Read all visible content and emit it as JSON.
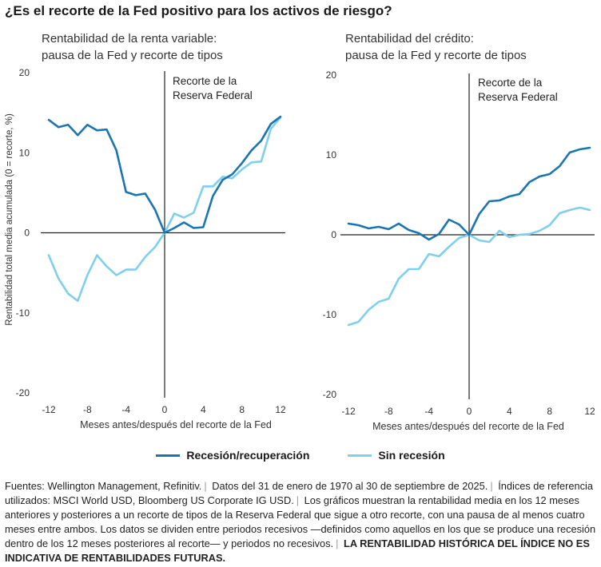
{
  "title": "¿Es el recorte de la Fed positivo para los activos de riesgo?",
  "y_axis_label": "Rentabilidad total media acumulada (0 = recorte, %)",
  "colors": {
    "recession": "#1b75b0",
    "no_recession": "#7fcfee",
    "axis": "#222222"
  },
  "legend": {
    "recession": "Recesión/recuperación",
    "no_recession": "Sin recesión"
  },
  "footnote": {
    "part1": "Fuentes: Wellington Management, Refinitiv.",
    "part2": "Datos del 31 de enero de 1970 al 30 de septiembre de 2025.",
    "part3": "Índices de referencia utilizados: MSCI World USD, Bloomberg US Corporate IG USD.",
    "part4": "Los gráficos muestran la rentabilidad media en los 12 meses anteriores y posteriores a un recorte de tipos de la Reserva Federal que sigue a otro recorte, con una pausa de al menos cuatro meses entre ambos. Los datos se dividen entre periodos recesivos —definidos como aquellos en los que se produce una recesión dentro de los 12 meses posteriores al recorte— y periodos no recesivos.",
    "disclaimer": "LA RENTABILIDAD HISTÓRICA DEL ÍNDICE NO ES INDICATIVA DE RENTABILIDADES FUTURAS."
  },
  "chart_data": [
    {
      "type": "line",
      "title": "Rentabilidad de la renta variable: pausa de la Fed y recorte de tipos",
      "subtitle_lines": [
        "Rentabilidad de la renta variable:",
        "pausa de la Fed y recorte de tipos"
      ],
      "xlabel": "Meses antes/después del recorte de la Fed",
      "ylabel": "Rentabilidad total media acumulada (0 = recorte, %)",
      "xlim": [
        -12,
        12
      ],
      "ylim": [
        -20,
        20
      ],
      "xticks": [
        -12,
        -8,
        -4,
        0,
        4,
        8,
        12
      ],
      "yticks": [
        20,
        10,
        0,
        -10,
        -20
      ],
      "annotation": [
        "Recorte de la",
        "Reserva Federal"
      ],
      "x": [
        -12,
        -11,
        -10,
        -9,
        -8,
        -7,
        -6,
        -5,
        -4,
        -3,
        -2,
        -1,
        0,
        1,
        2,
        3,
        4,
        5,
        6,
        7,
        8,
        9,
        10,
        11,
        12
      ],
      "series": [
        {
          "name": "Recesión/recuperación",
          "key": "recession",
          "values": [
            14.1,
            13.2,
            13.5,
            12.2,
            13.5,
            12.8,
            12.9,
            10.3,
            5.1,
            4.7,
            4.9,
            2.9,
            0,
            0.6,
            1.3,
            0.6,
            0.7,
            4.6,
            6.6,
            7.3,
            8.7,
            10.3,
            11.5,
            13.6,
            14.5
          ]
        },
        {
          "name": "Sin recesión",
          "key": "no_recession",
          "values": [
            -2.8,
            -5.7,
            -7.6,
            -8.5,
            -5.3,
            -2.8,
            -4.2,
            -5.3,
            -4.6,
            -4.6,
            -3.0,
            -1.8,
            0,
            2.4,
            1.9,
            2.5,
            5.8,
            5.8,
            7.0,
            6.8,
            7.9,
            8.8,
            8.9,
            13.0,
            14.4
          ]
        }
      ]
    },
    {
      "type": "line",
      "title": "Rentabilidad del crédito: pausa de la Fed y recorte de tipos",
      "subtitle_lines": [
        "Rentabilidad del crédito:",
        "pausa de la Fed y recorte de tipos"
      ],
      "xlabel": "Meses antes/después del recorte de la Fed",
      "ylabel": "",
      "xlim": [
        -12,
        12
      ],
      "ylim": [
        -20,
        20
      ],
      "xticks": [
        -12,
        -8,
        -4,
        0,
        4,
        8,
        12
      ],
      "yticks": [
        20,
        10,
        0,
        -10,
        -20
      ],
      "annotation": [
        "Recorte de la",
        "Reserva Federal"
      ],
      "x": [
        -12,
        -11,
        -10,
        -9,
        -8,
        -7,
        -6,
        -5,
        -4,
        -3,
        -2,
        -1,
        0,
        1,
        2,
        3,
        4,
        5,
        6,
        7,
        8,
        9,
        10,
        11,
        12
      ],
      "series": [
        {
          "name": "Recesión/recuperación",
          "key": "recession",
          "values": [
            1.4,
            1.2,
            0.8,
            1.0,
            0.7,
            1.4,
            0.6,
            0.2,
            -0.6,
            0.1,
            1.9,
            1.3,
            0,
            2.6,
            4.2,
            4.3,
            4.8,
            5.1,
            6.6,
            7.3,
            7.6,
            8.6,
            10.3,
            10.7,
            10.9
          ]
        },
        {
          "name": "Sin recesión",
          "key": "no_recession",
          "values": [
            -11.3,
            -10.9,
            -9.4,
            -8.4,
            -8.0,
            -5.5,
            -4.3,
            -4.3,
            -2.4,
            -2.7,
            -1.5,
            -0.4,
            0,
            -0.7,
            -0.9,
            0.5,
            -0.3,
            0.0,
            0.1,
            0.5,
            1.2,
            2.7,
            3.1,
            3.4,
            3.1
          ]
        }
      ]
    }
  ]
}
